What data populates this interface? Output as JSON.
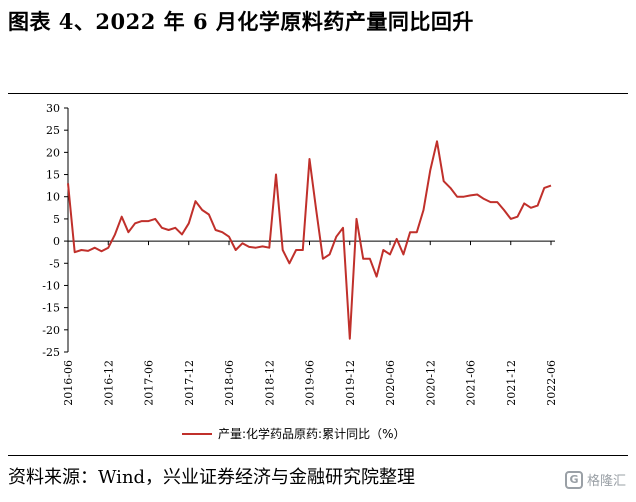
{
  "title": "图表 4、2022 年 6 月化学原料药产量同比回升",
  "source": "资料来源：Wind，兴业证券经济与金融研究院整理",
  "watermark": "格隆汇",
  "chart_data": {
    "type": "line",
    "title": "",
    "xlabel": "",
    "ylabel": "",
    "ylim": [
      -25,
      30
    ],
    "yticks": [
      30,
      25,
      20,
      15,
      10,
      5,
      0,
      -5,
      -10,
      -15,
      -20,
      -25
    ],
    "xtick_labels": [
      "2016-06",
      "2016-12",
      "2017-06",
      "2017-12",
      "2018-06",
      "2018-12",
      "2019-06",
      "2019-12",
      "2020-06",
      "2020-12",
      "2021-06",
      "2021-12",
      "2022-06"
    ],
    "legend": "bottom-center",
    "color": "#c0302b",
    "series": [
      {
        "name": "产量:化学药品原药:累计同比（%）",
        "x": [
          "2016-06",
          "2016-07",
          "2016-08",
          "2016-09",
          "2016-10",
          "2016-11",
          "2016-12",
          "2017-01",
          "2017-02",
          "2017-03",
          "2017-04",
          "2017-05",
          "2017-06",
          "2017-07",
          "2017-08",
          "2017-09",
          "2017-10",
          "2017-11",
          "2017-12",
          "2018-01",
          "2018-02",
          "2018-03",
          "2018-04",
          "2018-05",
          "2018-06",
          "2018-07",
          "2018-08",
          "2018-09",
          "2018-10",
          "2018-11",
          "2018-12",
          "2019-01",
          "2019-02",
          "2019-03",
          "2019-04",
          "2019-05",
          "2019-06",
          "2019-07",
          "2019-08",
          "2019-09",
          "2019-10",
          "2019-11",
          "2019-12",
          "2020-01",
          "2020-02",
          "2020-03",
          "2020-04",
          "2020-05",
          "2020-06",
          "2020-07",
          "2020-08",
          "2020-09",
          "2020-10",
          "2020-11",
          "2020-12",
          "2021-01",
          "2021-02",
          "2021-03",
          "2021-04",
          "2021-05",
          "2021-06",
          "2021-07",
          "2021-08",
          "2021-09",
          "2021-10",
          "2021-11",
          "2021-12",
          "2022-01",
          "2022-02",
          "2022-03",
          "2022-04",
          "2022-05",
          "2022-06"
        ],
        "values": [
          13,
          -2.5,
          -2,
          -2.2,
          -1.5,
          -2.3,
          -1.5,
          1.5,
          5.5,
          2,
          4,
          4.5,
          4.5,
          5,
          3,
          2.5,
          3,
          1.5,
          4,
          9,
          7,
          6,
          2.5,
          2,
          1,
          -2,
          -0.5,
          -1.3,
          -1.5,
          -1.2,
          -1.5,
          15,
          -2,
          -5,
          -2,
          -2,
          18.5,
          7,
          -4,
          -3,
          1,
          3,
          -22,
          5,
          -4,
          -4,
          -8,
          -2,
          -3,
          0.5,
          -3,
          2,
          2,
          7,
          16,
          22.5,
          13.5,
          12,
          10,
          10,
          10.3,
          10.5,
          9.5,
          8.8,
          8.8,
          7,
          5,
          5.5,
          8.5,
          7.5,
          8,
          12,
          12.5
        ]
      }
    ]
  }
}
